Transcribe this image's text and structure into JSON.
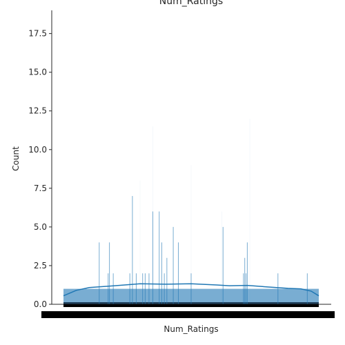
{
  "chart_data": {
    "type": "bar",
    "subtype": "histogram-with-kde",
    "title": "Num_Ratings",
    "xlabel": "Num_Ratings",
    "ylabel": "Count",
    "ylim": [
      0,
      19
    ],
    "y_ticks": [
      "0.0",
      "2.5",
      "5.0",
      "7.5",
      "10.0",
      "12.5",
      "15.0",
      "17.5"
    ],
    "y_tick_values": [
      0,
      2.5,
      5,
      7.5,
      10,
      12.5,
      15,
      17.5
    ],
    "grid": false,
    "legend": "none",
    "bar_color": "#1f77b4",
    "bar_alpha": 0.6,
    "line_color": "#1f77b4",
    "categories_count": 430,
    "base_count": 1,
    "peaks": [
      {
        "x": 0.14,
        "y": 4
      },
      {
        "x": 0.175,
        "y": 2
      },
      {
        "x": 0.18,
        "y": 4
      },
      {
        "x": 0.195,
        "y": 2
      },
      {
        "x": 0.26,
        "y": 2
      },
      {
        "x": 0.27,
        "y": 7
      },
      {
        "x": 0.285,
        "y": 2
      },
      {
        "x": 0.31,
        "y": 2
      },
      {
        "x": 0.32,
        "y": 2
      },
      {
        "x": 0.335,
        "y": 2
      },
      {
        "x": 0.35,
        "y": 6
      },
      {
        "x": 0.375,
        "y": 6
      },
      {
        "x": 0.385,
        "y": 4
      },
      {
        "x": 0.395,
        "y": 2
      },
      {
        "x": 0.405,
        "y": 3
      },
      {
        "x": 0.43,
        "y": 5
      },
      {
        "x": 0.45,
        "y": 4
      },
      {
        "x": 0.5,
        "y": 2
      },
      {
        "x": 0.625,
        "y": 5
      },
      {
        "x": 0.705,
        "y": 2
      },
      {
        "x": 0.71,
        "y": 3
      },
      {
        "x": 0.715,
        "y": 2
      },
      {
        "x": 0.72,
        "y": 4
      },
      {
        "x": 0.84,
        "y": 2
      },
      {
        "x": 0.955,
        "y": 2
      }
    ],
    "faint_bars": [
      {
        "x": 0.35,
        "y": 11.5
      },
      {
        "x": 0.5,
        "y": 9
      },
      {
        "x": 0.73,
        "y": 12
      },
      {
        "x": 0.62,
        "y": 6
      },
      {
        "x": 0.3,
        "y": 8
      }
    ],
    "kde": [
      {
        "x": 0.0,
        "y": 0.55
      },
      {
        "x": 0.05,
        "y": 0.9
      },
      {
        "x": 0.1,
        "y": 1.08
      },
      {
        "x": 0.2,
        "y": 1.2
      },
      {
        "x": 0.3,
        "y": 1.33
      },
      {
        "x": 0.4,
        "y": 1.3
      },
      {
        "x": 0.5,
        "y": 1.33
      },
      {
        "x": 0.6,
        "y": 1.25
      },
      {
        "x": 0.65,
        "y": 1.2
      },
      {
        "x": 0.72,
        "y": 1.22
      },
      {
        "x": 0.8,
        "y": 1.12
      },
      {
        "x": 0.88,
        "y": 1.03
      },
      {
        "x": 0.93,
        "y": 1.0
      },
      {
        "x": 0.97,
        "y": 0.85
      },
      {
        "x": 1.0,
        "y": 0.55
      }
    ]
  }
}
